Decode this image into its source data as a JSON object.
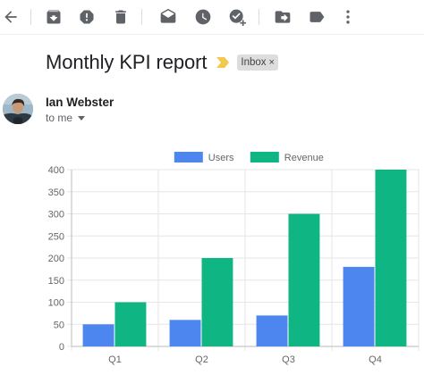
{
  "toolbar": {
    "icons": [
      "back-arrow-icon",
      "archive-icon",
      "report-spam-icon",
      "delete-icon",
      "mark-unread-icon",
      "snooze-icon",
      "add-to-tasks-icon",
      "move-to-icon",
      "label-icon",
      "more-vert-icon"
    ]
  },
  "email": {
    "subject": "Monthly KPI report",
    "label_chip": "Inbox",
    "chip_close": "×",
    "sender_name": "Ian Webster",
    "recipient": "to me"
  },
  "colors": {
    "users": "#4e86f0",
    "revenue": "#0fb582",
    "icon": "#5f6368",
    "importance": "#f2c94c",
    "grid": "#e6e6e6",
    "tick": "#666666"
  },
  "chart_data": {
    "type": "bar",
    "categories": [
      "Q1",
      "Q2",
      "Q3",
      "Q4"
    ],
    "series": [
      {
        "name": "Users",
        "values": [
          50,
          60,
          70,
          180
        ]
      },
      {
        "name": "Revenue",
        "values": [
          100,
          200,
          300,
          400
        ]
      }
    ],
    "ylim": [
      0,
      400
    ],
    "yticks": [
      0,
      50,
      100,
      150,
      200,
      250,
      300,
      350,
      400
    ],
    "legend": "top-center",
    "grid": true
  }
}
